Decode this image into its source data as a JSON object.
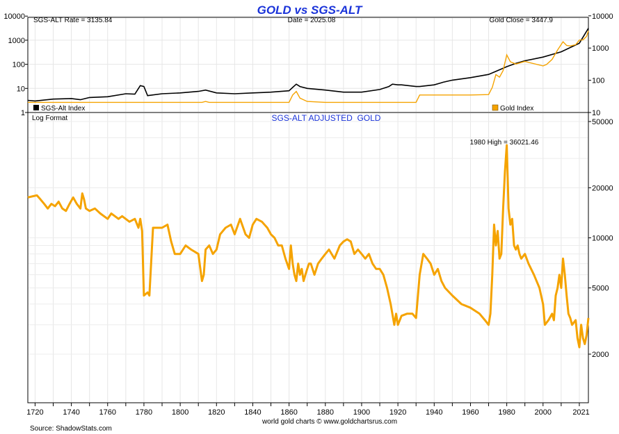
{
  "chart_data": [
    {
      "type": "line",
      "title": "GOLD vs SGS-ALT",
      "scale": "log",
      "left_ticks": [
        "10000",
        "1000",
        "100",
        "10",
        "1"
      ],
      "right_ticks": [
        "10000",
        "1000",
        "100",
        "10"
      ],
      "info": {
        "rate": "SGS-ALT Rate = 3135.84",
        "date": "Date = 2025.08",
        "close": "Gold Close = 3447.9"
      },
      "legend": [
        "SGS-Alt Index",
        "Gold Index"
      ],
      "colors": {
        "sgs": "#000000",
        "gold": "#f5a300"
      },
      "series": [
        {
          "name": "SGS-Alt Index",
          "axis": "left",
          "x": [
            1716,
            1720,
            1730,
            1740,
            1745,
            1750,
            1760,
            1770,
            1775,
            1778,
            1780,
            1782,
            1790,
            1800,
            1810,
            1814,
            1820,
            1830,
            1840,
            1850,
            1860,
            1862,
            1864,
            1866,
            1870,
            1880,
            1890,
            1900,
            1910,
            1915,
            1917,
            1920,
            1922,
            1930,
            1932,
            1940,
            1945,
            1950,
            1960,
            1970,
            1975,
            1980,
            1985,
            1990,
            2000,
            2010,
            2020,
            2025
          ],
          "y": [
            3.2,
            3.0,
            3.6,
            3.8,
            3.4,
            4.2,
            4.5,
            6.0,
            5.8,
            13,
            12,
            5,
            6,
            6.5,
            7.5,
            8.5,
            6.5,
            6,
            6.5,
            7,
            8,
            11,
            15,
            12,
            10,
            8.5,
            7,
            7,
            9,
            12,
            15,
            14,
            14,
            12,
            12,
            14,
            18,
            22,
            28,
            38,
            55,
            80,
            110,
            140,
            200,
            330,
            750,
            3135.84
          ]
        },
        {
          "name": "Gold Index",
          "axis": "right",
          "x": [
            1716,
            1790,
            1812,
            1814,
            1816,
            1860,
            1862,
            1864,
            1866,
            1870,
            1880,
            1900,
            1930,
            1932,
            1934,
            1940,
            1950,
            1960,
            1970,
            1972,
            1974,
            1976,
            1978,
            1980,
            1982,
            1985,
            1990,
            2000,
            2002,
            2005,
            2008,
            2011,
            2013,
            2015,
            2018,
            2020,
            2022,
            2024,
            2025
          ],
          "y": [
            20.67,
            20.67,
            20.67,
            22,
            20.67,
            20.67,
            35,
            45,
            28,
            22,
            20.67,
            20.67,
            20.67,
            35,
            35,
            35,
            35,
            35,
            36,
            60,
            150,
            125,
            200,
            615,
            375,
            320,
            383,
            280,
            310,
            445,
            870,
            1570,
            1200,
            1160,
            1270,
            1770,
            1800,
            2300,
            3447.9
          ]
        }
      ]
    },
    {
      "type": "line",
      "title": "SGS-ALT ADJUSTED  GOLD",
      "note": "Log Format",
      "scale": "log",
      "ylim": [
        1300,
        50000
      ],
      "xlim": [
        1716,
        2025
      ],
      "x_ticks": [
        "1720",
        "1740",
        "1760",
        "1780",
        "1800",
        "1820",
        "1840",
        "1860",
        "1880",
        "1900",
        "1920",
        "1940",
        "1960",
        "1980",
        "2000",
        "2021"
      ],
      "y_ticks": [
        "50000",
        "20000",
        "10000",
        "5000",
        "2000"
      ],
      "annotation": "1980 High = 36021.46",
      "color": "#f5a300",
      "series": [
        {
          "name": "SGS-ALT Adjusted Gold",
          "x": [
            1716,
            1719,
            1721,
            1723,
            1725,
            1727,
            1729,
            1731,
            1733,
            1735,
            1737,
            1739,
            1741,
            1743,
            1745,
            1746,
            1747,
            1748,
            1750,
            1753,
            1756,
            1760,
            1762,
            1764,
            1766,
            1768,
            1772,
            1775,
            1777,
            1778,
            1779,
            1780,
            1782,
            1783,
            1785,
            1790,
            1793,
            1795,
            1797,
            1800,
            1803,
            1806,
            1810,
            1812,
            1813,
            1814,
            1816,
            1818,
            1820,
            1822,
            1825,
            1828,
            1830,
            1833,
            1836,
            1838,
            1840,
            1842,
            1845,
            1848,
            1850,
            1852,
            1854,
            1856,
            1858,
            1860,
            1861,
            1862,
            1863,
            1864,
            1865,
            1866,
            1867,
            1868,
            1869,
            1870,
            1871,
            1872,
            1874,
            1876,
            1878,
            1880,
            1882,
            1885,
            1888,
            1890,
            1892,
            1894,
            1896,
            1898,
            1900,
            1902,
            1904,
            1906,
            1908,
            1910,
            1912,
            1914,
            1916,
            1918,
            1919,
            1920,
            1922,
            1925,
            1928,
            1930,
            1932,
            1934,
            1936,
            1938,
            1940,
            1942,
            1944,
            1946,
            1950,
            1955,
            1960,
            1965,
            1968,
            1970,
            1971,
            1972,
            1973,
            1974,
            1975,
            1976,
            1977,
            1978,
            1979,
            1980,
            1981,
            1982,
            1983,
            1984,
            1985,
            1986,
            1987,
            1988,
            1990,
            1992,
            1995,
            1998,
            2000,
            2001,
            2003,
            2005,
            2006,
            2007,
            2008,
            2009,
            2010,
            2011,
            2012,
            2013,
            2014,
            2015,
            2016,
            2018,
            2019,
            2020,
            2021,
            2022,
            2023,
            2024,
            2025
          ],
          "y": [
            17500,
            17800,
            18000,
            17000,
            16000,
            15000,
            16000,
            15500,
            16500,
            15000,
            14500,
            16000,
            17500,
            16000,
            15000,
            18500,
            17000,
            15000,
            14500,
            15000,
            14000,
            13000,
            14000,
            13500,
            13000,
            13500,
            12500,
            13000,
            11500,
            13000,
            11000,
            4500,
            4700,
            4500,
            11500,
            11500,
            12000,
            9500,
            8000,
            8000,
            9000,
            8500,
            8000,
            5500,
            6000,
            8500,
            9000,
            8000,
            8500,
            10500,
            11500,
            12000,
            10500,
            13000,
            10500,
            10000,
            12000,
            13000,
            12500,
            11500,
            10500,
            10000,
            9000,
            9000,
            7500,
            6500,
            9000,
            7000,
            6000,
            5500,
            7000,
            6000,
            6500,
            5500,
            6000,
            6500,
            7000,
            7000,
            6000,
            7000,
            7500,
            8000,
            8500,
            7500,
            9000,
            9500,
            9800,
            9500,
            8000,
            8500,
            8000,
            7500,
            8000,
            7000,
            6500,
            6500,
            6000,
            5000,
            4000,
            3000,
            3500,
            3000,
            3400,
            3500,
            3500,
            3300,
            6000,
            8000,
            7500,
            7000,
            6000,
            6500,
            5500,
            5000,
            4500,
            4000,
            3800,
            3500,
            3200,
            3000,
            3500,
            6000,
            12000,
            9000,
            11000,
            7500,
            8000,
            15000,
            25000,
            36021,
            15000,
            12000,
            13000,
            9000,
            8500,
            9000,
            8000,
            7500,
            8000,
            7000,
            6000,
            5000,
            4000,
            3000,
            3200,
            3500,
            3200,
            4500,
            5000,
            6000,
            5000,
            7500,
            6000,
            4500,
            3500,
            3300,
            3000,
            3200,
            2500,
            2200,
            3000,
            2500,
            2300,
            2600,
            3300
          ]
        }
      ]
    }
  ],
  "footer": {
    "source": "Source: ShadowStats.com",
    "credit": "world gold charts © www.goldchartsrus.com"
  }
}
